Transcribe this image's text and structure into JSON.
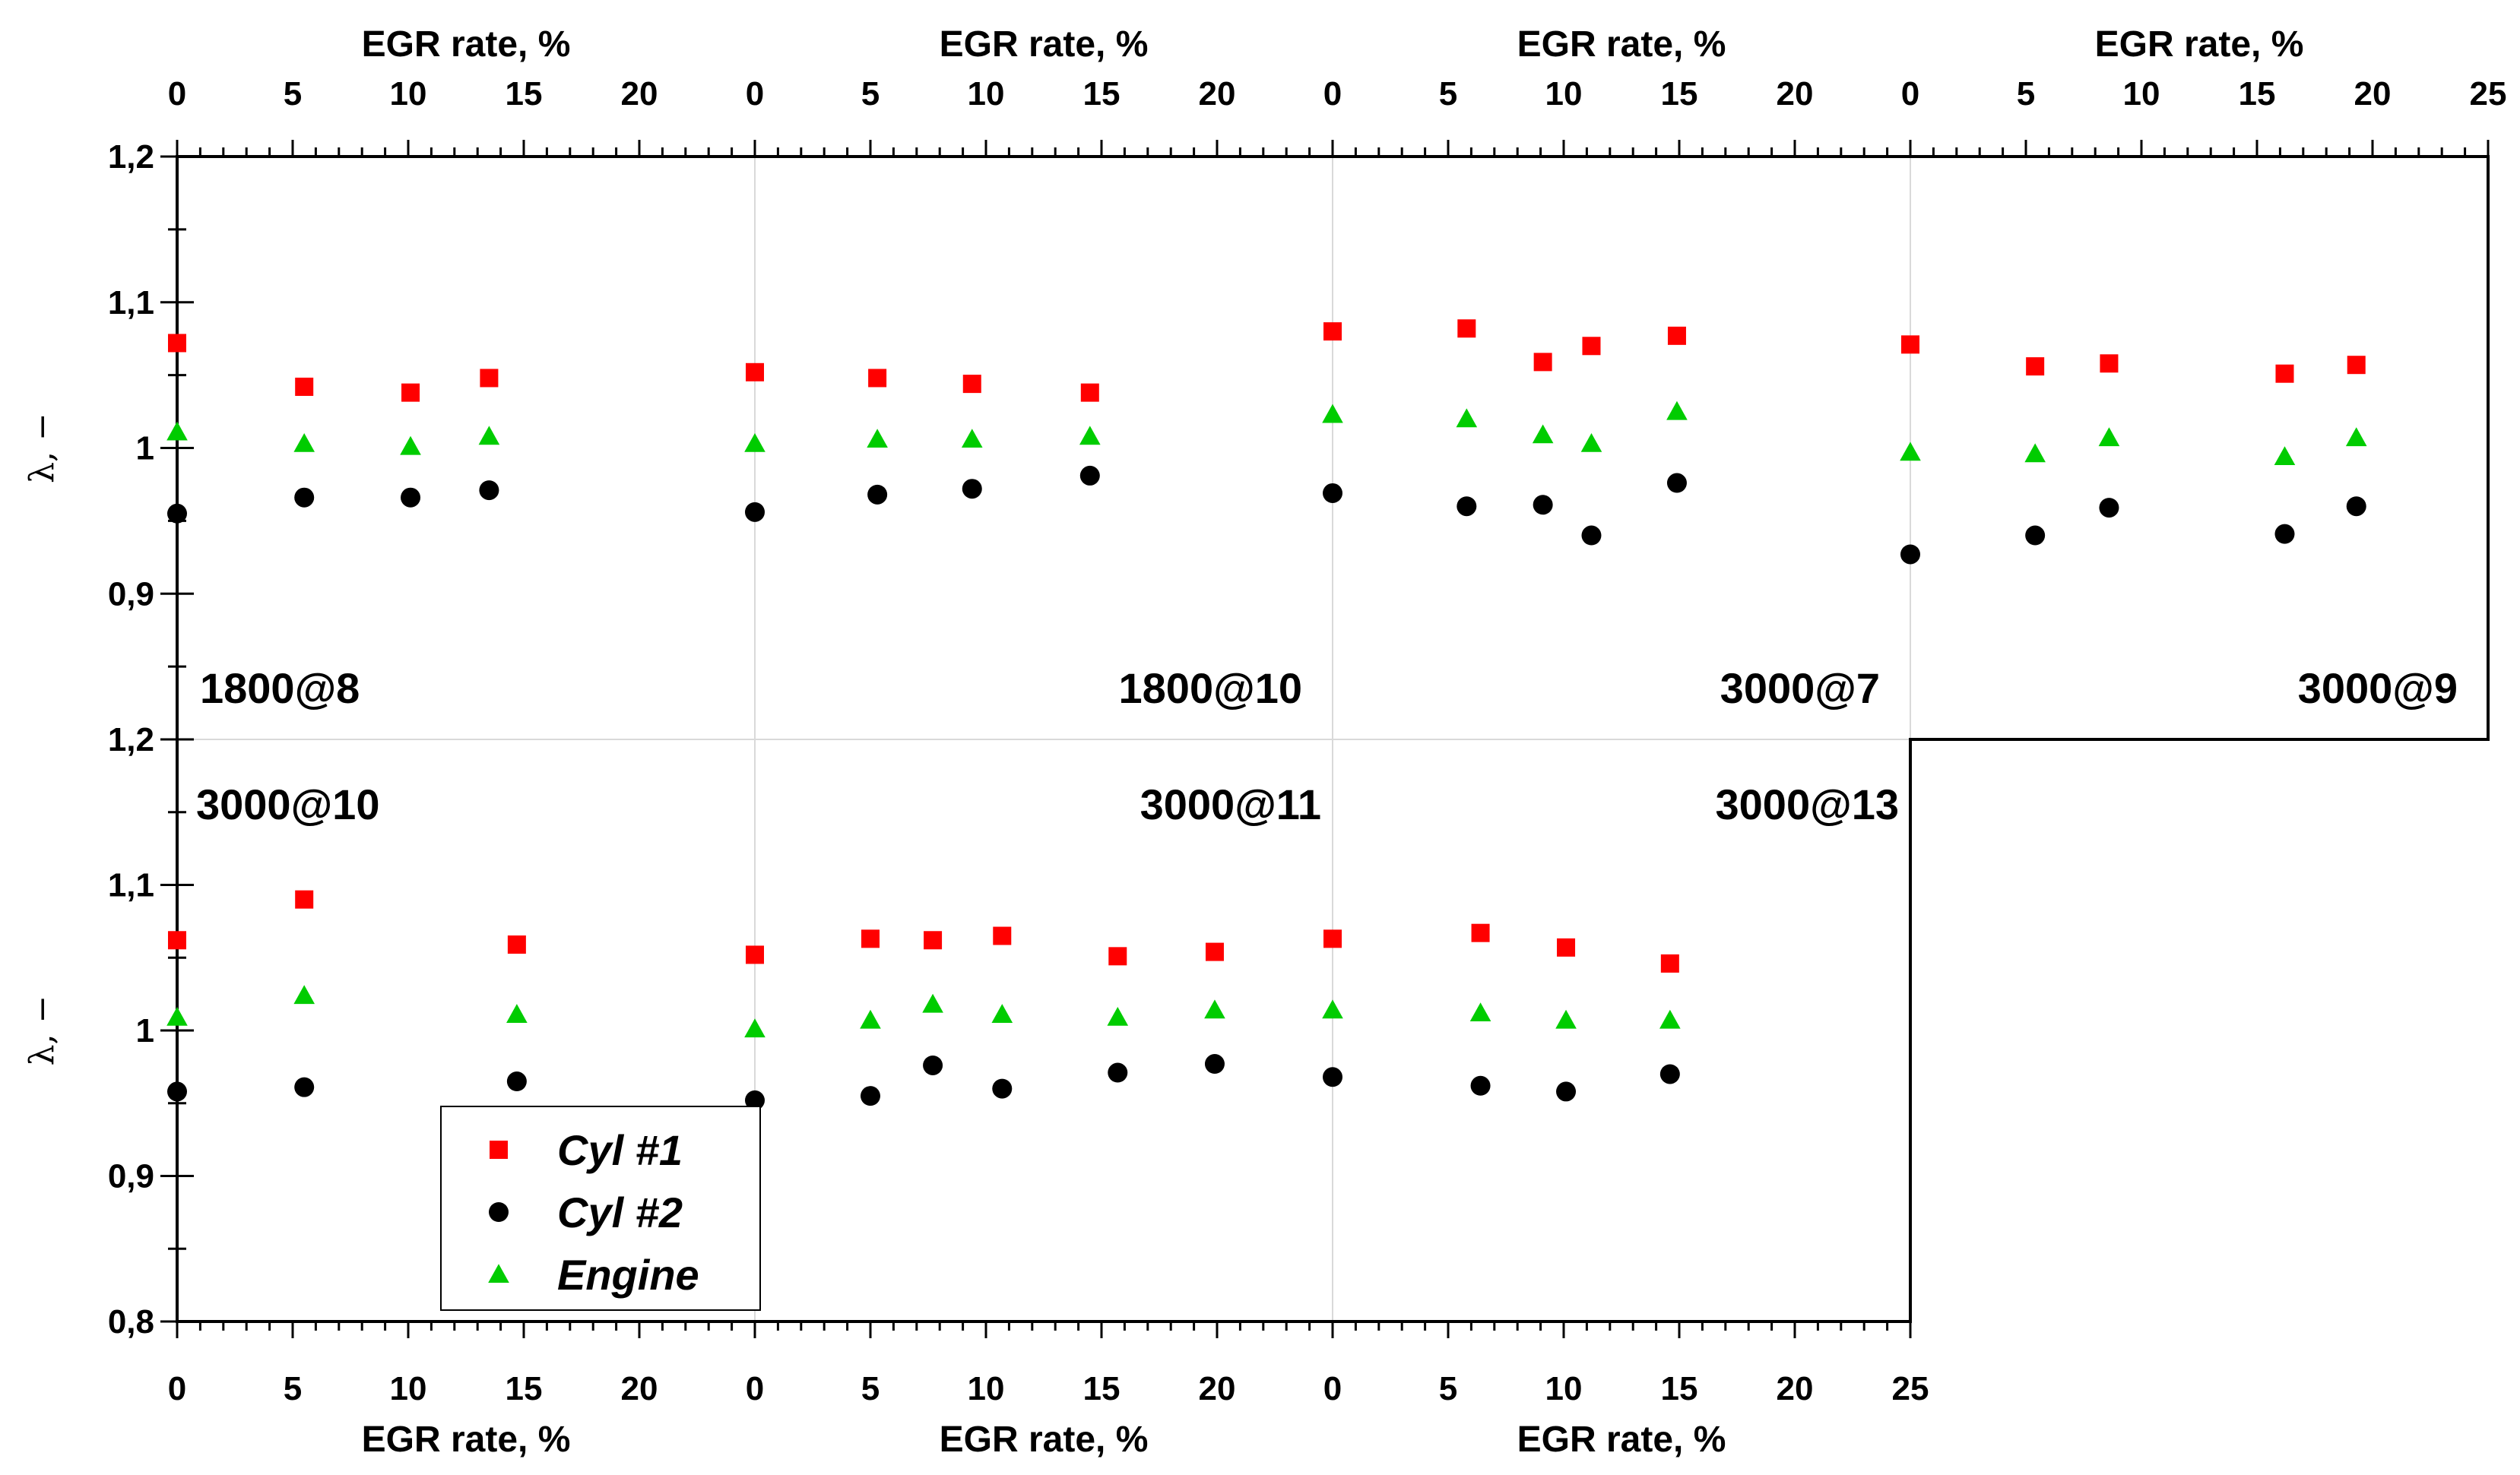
{
  "chart_data": {
    "type": "scatter",
    "x_axis_label": "EGR rate, %",
    "y_axis_label": "λ, −",
    "x_ticks": [
      "0",
      "5",
      "10",
      "15",
      "20",
      "25"
    ],
    "y_ticks_top": [
      "0,9",
      "1",
      "1,1",
      "1,2"
    ],
    "y_ticks_bottom": [
      "0,8",
      "0,9",
      "1",
      "1,1",
      "1,2"
    ],
    "xlim_per_panel": [
      0,
      25
    ],
    "ylim_top": [
      0.8,
      1.2
    ],
    "ylim_bottom": [
      0.8,
      1.2
    ],
    "legend": {
      "position": "lower-left",
      "entries": [
        {
          "name": "Cyl #1",
          "marker": "square",
          "color": "#ff0000"
        },
        {
          "name": "Cyl #2",
          "marker": "circle",
          "color": "#000000"
        },
        {
          "name": "Engine",
          "marker": "triangle",
          "color": "#00cc00"
        }
      ]
    },
    "panels": [
      {
        "row": "top",
        "col": 0,
        "label": "1800@8",
        "label_pos": "bottom-left",
        "series": {
          "Cyl #1": [
            [
              0,
              1.072
            ],
            [
              5.5,
              1.042
            ],
            [
              10.1,
              1.038
            ],
            [
              13.5,
              1.048
            ]
          ],
          "Cyl #2": [
            [
              0,
              0.955
            ],
            [
              5.5,
              0.966
            ],
            [
              10.1,
              0.966
            ],
            [
              13.5,
              0.971
            ]
          ],
          "Engine": [
            [
              0,
              1.011
            ],
            [
              5.5,
              1.003
            ],
            [
              10.1,
              1.001
            ],
            [
              13.5,
              1.008
            ]
          ]
        }
      },
      {
        "row": "top",
        "col": 1,
        "label": "1800@10",
        "label_pos": "bottom-right",
        "series": {
          "Cyl #1": [
            [
              0,
              1.052
            ],
            [
              5.3,
              1.048
            ],
            [
              9.4,
              1.044
            ],
            [
              14.5,
              1.038
            ]
          ],
          "Cyl #2": [
            [
              0,
              0.956
            ],
            [
              5.3,
              0.968
            ],
            [
              9.4,
              0.972
            ],
            [
              14.5,
              0.981
            ]
          ],
          "Engine": [
            [
              0,
              1.003
            ],
            [
              5.3,
              1.006
            ],
            [
              9.4,
              1.006
            ],
            [
              14.5,
              1.008
            ]
          ]
        }
      },
      {
        "row": "top",
        "col": 2,
        "label": "3000@7",
        "label_pos": "bottom-right",
        "series": {
          "Cyl #1": [
            [
              0,
              1.08
            ],
            [
              5.8,
              1.082
            ],
            [
              9.1,
              1.059
            ],
            [
              11.2,
              1.07
            ],
            [
              14.9,
              1.077
            ]
          ],
          "Cyl #2": [
            [
              0,
              0.969
            ],
            [
              5.8,
              0.96
            ],
            [
              9.1,
              0.961
            ],
            [
              11.2,
              0.94
            ],
            [
              14.9,
              0.976
            ]
          ],
          "Engine": [
            [
              0,
              1.023
            ],
            [
              5.8,
              1.02
            ],
            [
              9.1,
              1.009
            ],
            [
              11.2,
              1.003
            ],
            [
              14.9,
              1.025
            ]
          ]
        }
      },
      {
        "row": "top",
        "col": 3,
        "label": "3000@9",
        "label_pos": "bottom-right",
        "series": {
          "Cyl #1": [
            [
              0,
              1.071
            ],
            [
              5.4,
              1.056
            ],
            [
              8.6,
              1.058
            ],
            [
              16.2,
              1.051
            ],
            [
              19.3,
              1.057
            ]
          ],
          "Cyl #2": [
            [
              0,
              0.927
            ],
            [
              5.4,
              0.94
            ],
            [
              8.6,
              0.959
            ],
            [
              16.2,
              0.941
            ],
            [
              19.3,
              0.96
            ]
          ],
          "Engine": [
            [
              0,
              0.997
            ],
            [
              5.4,
              0.996
            ],
            [
              8.6,
              1.007
            ],
            [
              16.2,
              0.994
            ],
            [
              19.3,
              1.007
            ]
          ]
        }
      },
      {
        "row": "bottom",
        "col": 0,
        "label": "3000@10",
        "label_pos": "top-left",
        "series": {
          "Cyl #1": [
            [
              0,
              1.062
            ],
            [
              5.5,
              1.09
            ],
            [
              14.7,
              1.059
            ]
          ],
          "Cyl #2": [
            [
              0,
              0.958
            ],
            [
              5.5,
              0.961
            ],
            [
              14.7,
              0.965
            ]
          ],
          "Engine": [
            [
              0,
              1.009
            ],
            [
              5.5,
              1.024
            ],
            [
              14.7,
              1.011
            ]
          ]
        }
      },
      {
        "row": "bottom",
        "col": 1,
        "label": "3000@11",
        "label_pos": "top-right",
        "series": {
          "Cyl #1": [
            [
              0,
              1.052
            ],
            [
              5,
              1.063
            ],
            [
              7.7,
              1.062
            ],
            [
              10.7,
              1.065
            ],
            [
              15.7,
              1.051
            ],
            [
              19.9,
              1.054
            ]
          ],
          "Cyl #2": [
            [
              0,
              0.952
            ],
            [
              5,
              0.955
            ],
            [
              7.7,
              0.976
            ],
            [
              10.7,
              0.96
            ],
            [
              15.7,
              0.971
            ],
            [
              19.9,
              0.977
            ]
          ],
          "Engine": [
            [
              0,
              1.001
            ],
            [
              5,
              1.007
            ],
            [
              7.7,
              1.018
            ],
            [
              10.7,
              1.011
            ],
            [
              15.7,
              1.009
            ],
            [
              19.9,
              1.014
            ]
          ]
        }
      },
      {
        "row": "bottom",
        "col": 2,
        "label": "3000@13",
        "label_pos": "top-right",
        "series": {
          "Cyl #1": [
            [
              0,
              1.063
            ],
            [
              6.4,
              1.067
            ],
            [
              10.1,
              1.057
            ],
            [
              14.6,
              1.046
            ]
          ],
          "Cyl #2": [
            [
              0,
              0.968
            ],
            [
              6.4,
              0.962
            ],
            [
              10.1,
              0.958
            ],
            [
              14.6,
              0.97
            ]
          ],
          "Engine": [
            [
              0,
              1.014
            ],
            [
              6.4,
              1.012
            ],
            [
              10.1,
              1.007
            ],
            [
              14.6,
              1.007
            ]
          ]
        }
      }
    ]
  }
}
